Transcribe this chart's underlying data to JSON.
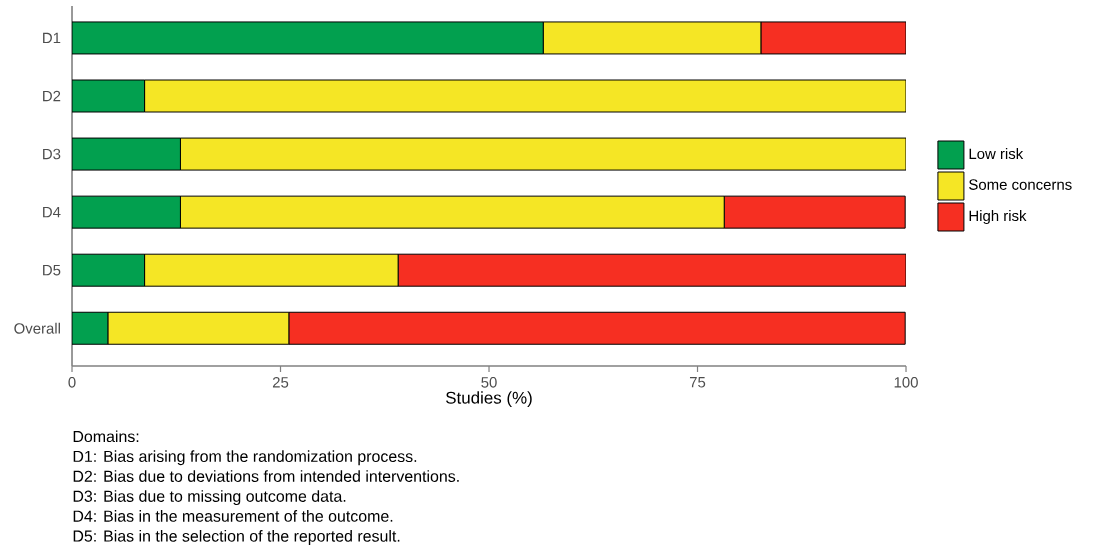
{
  "chart_data": {
    "type": "bar",
    "orientation": "horizontal",
    "stacked": true,
    "categories": [
      "D1",
      "D2",
      "D3",
      "D4",
      "D5",
      "Overall"
    ],
    "series": [
      {
        "name": "Low risk",
        "color": "#02a04f",
        "values": [
          56.5,
          8.7,
          13.0,
          13.0,
          8.7,
          4.3
        ]
      },
      {
        "name": "Some concerns",
        "color": "#f5e625",
        "values": [
          26.1,
          91.3,
          87.0,
          65.2,
          30.4,
          21.7
        ]
      },
      {
        "name": "High risk",
        "color": "#f62f22",
        "values": [
          17.4,
          0,
          0,
          21.7,
          60.9,
          73.9
        ]
      }
    ],
    "xlim": [
      0,
      100
    ],
    "xticks": [
      0,
      25,
      50,
      75,
      100
    ],
    "xlabel": "Studies (%)",
    "legend": "right",
    "annotations": [
      "Domains:",
      "D1: Bias arising from the randomization process.",
      "D2: Bias due to deviations from intended interventions.",
      "D3: Bias due to missing outcome data.",
      "D4: Bias in the measurement of the outcome.",
      "D5: Bias in the selection of the reported result."
    ]
  }
}
